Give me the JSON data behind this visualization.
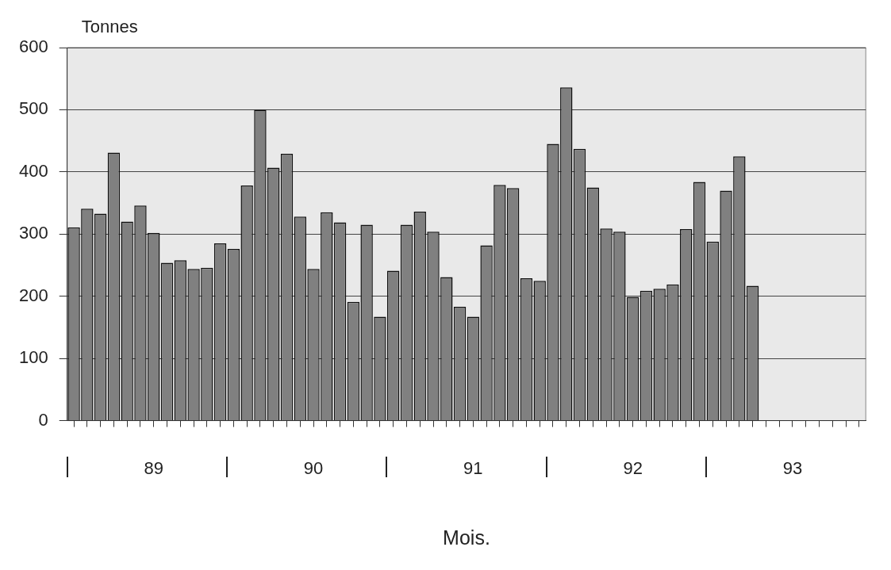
{
  "chart_data": {
    "type": "bar",
    "xlabel": "Mois.",
    "ylabel": "Tonnes",
    "categories": [
      null,
      null,
      null,
      null,
      null,
      null,
      "89",
      null,
      null,
      null,
      null,
      null,
      null,
      null,
      null,
      null,
      null,
      null,
      "90",
      null,
      null,
      null,
      null,
      null,
      null,
      null,
      null,
      null,
      null,
      null,
      "91",
      null,
      null,
      null,
      null,
      null,
      null,
      null,
      null,
      null,
      null,
      null,
      "92",
      null,
      null,
      null,
      null,
      null,
      null,
      null,
      null,
      null,
      null,
      null,
      "93",
      null,
      null,
      null,
      null,
      null
    ],
    "values": [
      311,
      341,
      333,
      431,
      320,
      346,
      302,
      254,
      258,
      244,
      246,
      285,
      276,
      378,
      500,
      407,
      429,
      328,
      244,
      335,
      319,
      191,
      315,
      167,
      241,
      315,
      336,
      304,
      231,
      183,
      167,
      282,
      379,
      374,
      229,
      225,
      445,
      536,
      437,
      375,
      309,
      304,
      199,
      209,
      212,
      219,
      308,
      384,
      288,
      370,
      425,
      217,
      null,
      null,
      null,
      null,
      null,
      null,
      null,
      null
    ],
    "color": "#808080",
    "ylim": [
      0,
      600
    ],
    "yticks": [
      0,
      100,
      200,
      300,
      400,
      500,
      600
    ],
    "grid": "y",
    "legend": false
  }
}
